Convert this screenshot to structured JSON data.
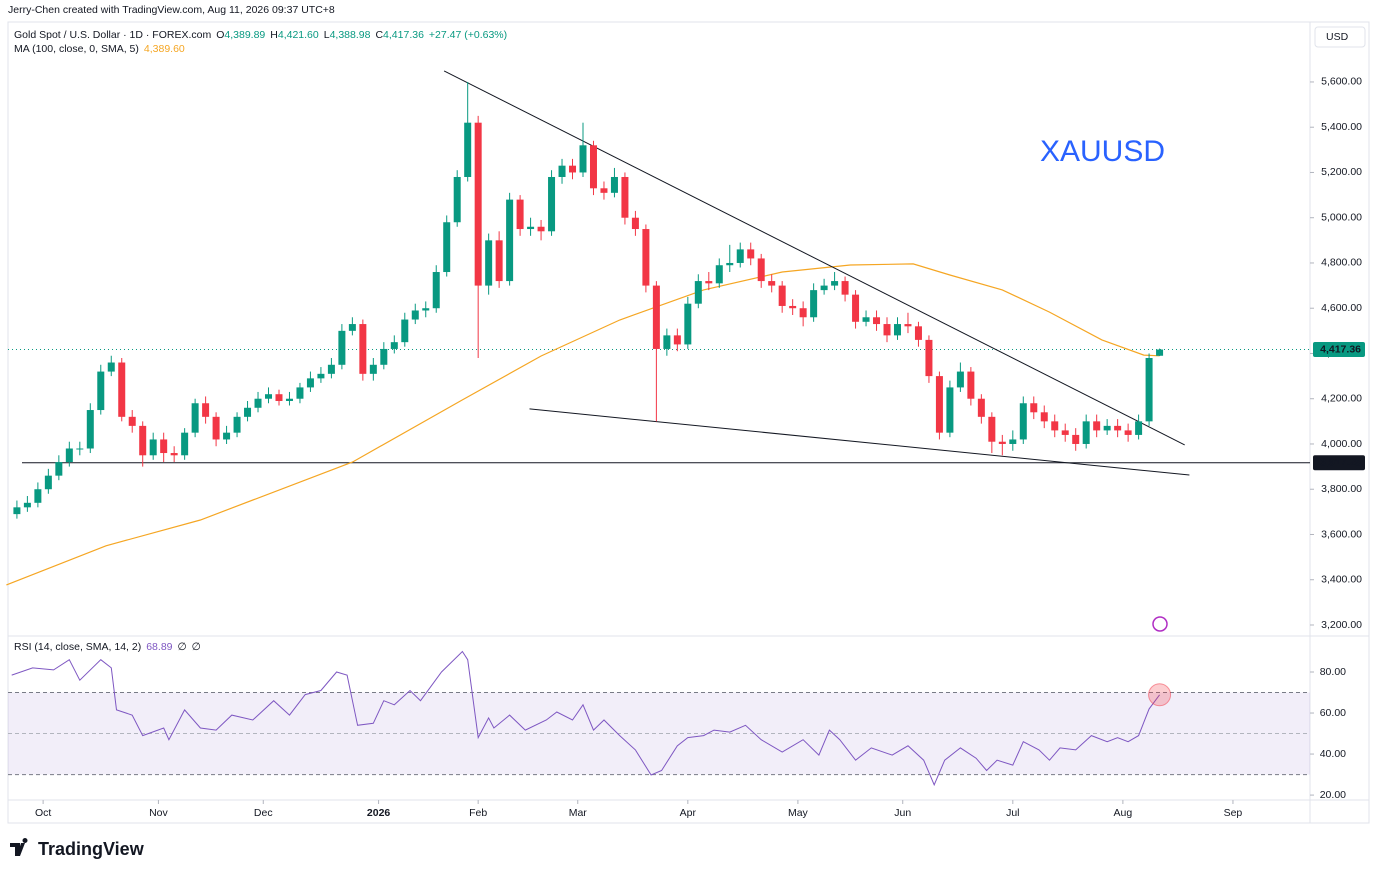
{
  "header": {
    "created": "Jerry-Chen created with TradingView.com, Aug 11, 2026 09:37 UTC+8",
    "currency": "USD",
    "logo": "TradingView"
  },
  "chart_data": [
    {
      "type": "candlestick",
      "title": "Gold Spot / U.S. Dollar · 1D · FOREX.com",
      "ohlc": [
        {
          "label": "O",
          "value": "4,389.89"
        },
        {
          "label": "H",
          "value": "4,421.60"
        },
        {
          "label": "L",
          "value": "4,388.98"
        },
        {
          "label": "C",
          "value": "4,417.36"
        }
      ],
      "change": "+27.47 (+0.63%)",
      "annotation": "XAUUSD",
      "up_color": "#089981",
      "down_color": "#f23645",
      "x": [
        3,
        5,
        7,
        9,
        11,
        13,
        15,
        17,
        19,
        21,
        23,
        25,
        27,
        29,
        31,
        33,
        35,
        37,
        39,
        41,
        43,
        45,
        47,
        49,
        51,
        53,
        55,
        57,
        59,
        61,
        63,
        65,
        67,
        69,
        71,
        73,
        75,
        77,
        79,
        81,
        83,
        85,
        87,
        89,
        91,
        93,
        95,
        97,
        99,
        101,
        103,
        105,
        107,
        109,
        111,
        113,
        115,
        117,
        119,
        121,
        123,
        125,
        127,
        129,
        131,
        133,
        135,
        137,
        139,
        141,
        143,
        145,
        147,
        149,
        151,
        153,
        155,
        157,
        159,
        161,
        163,
        165,
        167,
        169,
        171,
        173,
        175,
        177,
        179,
        181,
        183,
        185,
        187,
        189,
        191,
        193,
        195,
        197,
        199,
        201,
        203,
        205,
        207,
        209,
        211,
        213,
        215,
        217,
        219,
        221
      ],
      "open": [
        3690,
        3720,
        3740,
        3800,
        3860,
        3920,
        3980,
        3980,
        4150,
        4320,
        4360,
        4120,
        4080,
        3950,
        4020,
        3960,
        3950,
        4050,
        4180,
        4120,
        4020,
        4050,
        4120,
        4160,
        4200,
        4220,
        4190,
        4200,
        4250,
        4290,
        4310,
        4350,
        4500,
        4530,
        4310,
        4350,
        4420,
        4450,
        4550,
        4590,
        4600,
        4760,
        4980,
        5180,
        5420,
        4700,
        4900,
        4720,
        5080,
        4950,
        4960,
        4940,
        5180,
        5230,
        5200,
        5320,
        5130,
        5110,
        5180,
        5000,
        4950,
        4700,
        4420,
        4480,
        4440,
        4620,
        4720,
        4710,
        4790,
        4800,
        4860,
        4820,
        4720,
        4700,
        4610,
        4600,
        4560,
        4680,
        4700,
        4720,
        4660,
        4540,
        4560,
        4530,
        4480,
        4530,
        4520,
        4460,
        4300,
        4050,
        4250,
        4320,
        4200,
        4120,
        4010,
        4000,
        4020,
        4180,
        4140,
        4100,
        4060,
        4040,
        4000,
        4100,
        4060,
        4080,
        4060,
        4040,
        4100,
        4389.89
      ],
      "high": [
        3750,
        3770,
        3830,
        3890,
        3950,
        4010,
        4010,
        4180,
        4350,
        4390,
        4380,
        4150,
        4100,
        4050,
        4050,
        3990,
        4070,
        4200,
        4210,
        4140,
        4080,
        4140,
        4190,
        4230,
        4250,
        4240,
        4230,
        4270,
        4320,
        4340,
        4380,
        4530,
        4560,
        4550,
        4380,
        4450,
        4480,
        4580,
        4620,
        4630,
        4790,
        5010,
        5210,
        5600,
        5450,
        4930,
        4940,
        5110,
        5100,
        5000,
        4990,
        5210,
        5260,
        5260,
        5420,
        5340,
        5160,
        5220,
        5200,
        5030,
        4970,
        4720,
        4510,
        4510,
        4650,
        4750,
        4760,
        4820,
        4880,
        4890,
        4890,
        4840,
        4750,
        4720,
        4640,
        4630,
        4710,
        4730,
        4760,
        4740,
        4680,
        4590,
        4590,
        4560,
        4560,
        4580,
        4540,
        4480,
        4320,
        4280,
        4360,
        4340,
        4220,
        4140,
        4040,
        4060,
        4210,
        4210,
        4170,
        4130,
        4090,
        4070,
        4130,
        4130,
        4110,
        4110,
        4090,
        4130,
        4400,
        4421.6
      ],
      "low": [
        3670,
        3700,
        3720,
        3780,
        3840,
        3900,
        3950,
        3960,
        4130,
        4300,
        4100,
        4050,
        3900,
        3930,
        3920,
        3920,
        3930,
        4030,
        4090,
        3990,
        4000,
        4030,
        4100,
        4140,
        4180,
        4170,
        4170,
        4180,
        4230,
        4270,
        4290,
        4330,
        4480,
        4280,
        4280,
        4330,
        4400,
        4430,
        4530,
        4560,
        4580,
        4740,
        4960,
        5160,
        4380,
        4660,
        4690,
        4700,
        4920,
        4920,
        4900,
        4920,
        5150,
        5170,
        5180,
        5100,
        5080,
        5090,
        4970,
        4920,
        4670,
        4100,
        4390,
        4410,
        4420,
        4600,
        4680,
        4690,
        4760,
        4780,
        4790,
        4690,
        4670,
        4580,
        4570,
        4520,
        4540,
        4660,
        4680,
        4630,
        4510,
        4520,
        4500,
        4450,
        4460,
        4490,
        4430,
        4270,
        4020,
        4030,
        4230,
        4170,
        4090,
        3960,
        3950,
        3970,
        4000,
        4110,
        4070,
        4030,
        4010,
        3970,
        3980,
        4030,
        4040,
        4030,
        4010,
        4020,
        4080,
        4388.98
      ],
      "close": [
        3720,
        3740,
        3800,
        3860,
        3920,
        3980,
        3980,
        4150,
        4320,
        4360,
        4120,
        4080,
        3950,
        4020,
        3960,
        3950,
        4050,
        4180,
        4120,
        4020,
        4050,
        4120,
        4160,
        4200,
        4220,
        4190,
        4200,
        4250,
        4290,
        4310,
        4350,
        4500,
        4530,
        4310,
        4350,
        4420,
        4450,
        4550,
        4590,
        4600,
        4760,
        4980,
        5180,
        5420,
        4700,
        4900,
        4720,
        5080,
        4950,
        4960,
        4940,
        5180,
        5230,
        5200,
        5320,
        5130,
        5110,
        5180,
        5000,
        4950,
        4700,
        4420,
        4480,
        4440,
        4620,
        4720,
        4710,
        4790,
        4800,
        4860,
        4820,
        4720,
        4700,
        4610,
        4600,
        4560,
        4680,
        4700,
        4720,
        4660,
        4540,
        4560,
        4530,
        4480,
        4530,
        4520,
        4460,
        4300,
        4050,
        4250,
        4320,
        4200,
        4120,
        4010,
        4000,
        4020,
        4180,
        4140,
        4100,
        4060,
        4040,
        4000,
        4100,
        4060,
        4080,
        4060,
        4040,
        4100,
        4380,
        4417.36
      ],
      "ma": {
        "name": "MA (100, close, 0, SMA, 5)",
        "value_label": "4,389.60",
        "color": "#f5a623",
        "x": [
          1,
          20,
          38,
          67,
          88,
          103,
          118,
          134,
          149,
          162,
          174,
          181,
          191,
          200,
          210,
          218,
          221
        ],
        "values": [
          3377,
          3550,
          3664,
          3920,
          4195,
          4389,
          4548,
          4681,
          4760,
          4791,
          4796,
          4747,
          4681,
          4583,
          4460,
          4393,
          4389.6
        ]
      },
      "trendlines": [
        {
          "x": [
            84.5,
            225.8
          ],
          "values": [
            5649,
            3996
          ]
        },
        {
          "x": [
            100.8,
            226.7
          ],
          "values": [
            4155,
            3863
          ]
        }
      ],
      "last_price": {
        "value": 4417.36,
        "label": "4,417.36"
      },
      "level": {
        "value": 3917.25,
        "label": "3,917.25"
      },
      "xlim": [
        1.3,
        249.7
      ],
      "xticks": [
        {
          "value": 8,
          "label": "Oct"
        },
        {
          "value": 30,
          "label": "Nov"
        },
        {
          "value": 50,
          "label": "Dec"
        },
        {
          "value": 72,
          "label": "2026"
        },
        {
          "value": 91,
          "label": "Feb"
        },
        {
          "value": 110,
          "label": "Mar"
        },
        {
          "value": 131,
          "label": "Apr"
        },
        {
          "value": 152,
          "label": "May"
        },
        {
          "value": 172,
          "label": "Jun"
        },
        {
          "value": 193,
          "label": "Jul"
        },
        {
          "value": 214,
          "label": "Aug"
        },
        {
          "value": 235,
          "label": "Sep"
        }
      ],
      "ylim": [
        3169,
        5865
      ],
      "yticks": [
        {
          "value": 3200,
          "label": "3,200.00"
        },
        {
          "value": 3400,
          "label": "3,400.00"
        },
        {
          "value": 3600,
          "label": "3,600.00"
        },
        {
          "value": 3800,
          "label": "3,800.00"
        },
        {
          "value": 4000,
          "label": "4,000.00"
        },
        {
          "value": 4200,
          "label": "4,200.00"
        },
        {
          "value": 4400,
          "label": "4,400.00"
        },
        {
          "value": 4600,
          "label": "4,600.00"
        },
        {
          "value": 4800,
          "label": "4,800.00"
        },
        {
          "value": 5000,
          "label": "5,000.00"
        },
        {
          "value": 5200,
          "label": "5,200.00"
        },
        {
          "value": 5400,
          "label": "5,400.00"
        },
        {
          "value": 5600,
          "label": "5,600.00"
        }
      ]
    },
    {
      "type": "line",
      "title": "RSI (14, close, SMA, 14, 2)",
      "value_label": "68.89",
      "extras": [
        "∅",
        "∅"
      ],
      "series": [
        {
          "name": "RSI",
          "color": "#7e57c2",
          "x": [
            2,
            6,
            10,
            13,
            15,
            19,
            21,
            22,
            25,
            27,
            31,
            32,
            35,
            38,
            41,
            44,
            48,
            52,
            55,
            58,
            61,
            64,
            66,
            68,
            71,
            73,
            75,
            78,
            80,
            84,
            88,
            89,
            91,
            93,
            94,
            97,
            100,
            104,
            106,
            109,
            111,
            113,
            115,
            118,
            121,
            124,
            126,
            129,
            131,
            134,
            136,
            139,
            142,
            145,
            149,
            153,
            156,
            158,
            160,
            163,
            166,
            170,
            173,
            176,
            178,
            180,
            183,
            186,
            188,
            190,
            193,
            195,
            198,
            200,
            202,
            205,
            208,
            211,
            213,
            215,
            217,
            219,
            221
          ],
          "values": [
            78.5,
            82,
            81,
            86,
            76,
            86,
            82,
            61.5,
            59,
            49,
            52.7,
            47,
            61.5,
            52.7,
            51.7,
            59,
            56.6,
            66,
            59,
            69,
            71,
            80,
            78.5,
            54,
            55,
            66,
            64,
            71,
            66,
            80,
            90,
            86,
            48,
            57.6,
            52.7,
            59,
            51.7,
            56.6,
            60.5,
            56.6,
            64,
            51.7,
            56.6,
            49,
            42,
            29.8,
            32,
            44,
            48,
            49,
            51.7,
            50.7,
            54,
            47,
            41,
            47,
            39.5,
            51.7,
            47,
            37,
            43,
            39.5,
            44,
            37,
            25,
            37,
            43,
            38,
            32,
            37,
            34.6,
            46,
            42,
            37,
            43,
            42,
            49,
            46,
            48,
            46,
            49,
            62,
            68.89
          ]
        }
      ],
      "band": [
        30,
        70
      ],
      "midline": 50,
      "ylim": [
        17.6,
        95.6
      ],
      "yticks": [
        {
          "value": 20,
          "label": "20.00"
        },
        {
          "value": 40,
          "label": "40.00"
        },
        {
          "value": 60,
          "label": "60.00"
        },
        {
          "value": 80,
          "label": "80.00"
        }
      ]
    }
  ]
}
